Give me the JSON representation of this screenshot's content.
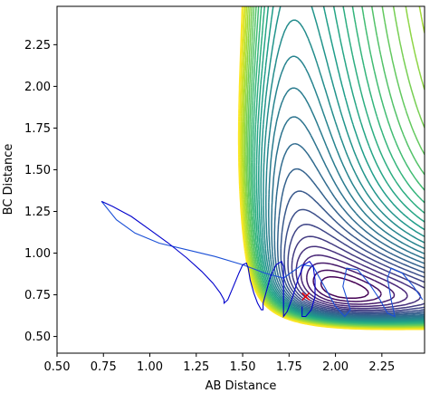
{
  "chart_data": {
    "type": "contour",
    "title": "",
    "xlabel": "AB Distance",
    "ylabel": "BC Distance",
    "xlim": [
      0.5,
      2.48
    ],
    "ylim": [
      0.4,
      2.48
    ],
    "xticks": [
      "0.50",
      "0.75",
      "1.00",
      "1.25",
      "1.50",
      "1.75",
      "2.00",
      "2.25"
    ],
    "yticks": [
      "0.50",
      "0.75",
      "1.00",
      "1.25",
      "1.50",
      "1.75",
      "2.00",
      "2.25"
    ],
    "colormap": "viridis",
    "grid": false,
    "contour_levels": 30,
    "trajectory": {
      "color": "#0000cc",
      "points": [
        [
          0.74,
          1.31
        ],
        [
          0.8,
          1.28
        ],
        [
          0.9,
          1.22
        ],
        [
          1.0,
          1.14
        ],
        [
          1.1,
          1.06
        ],
        [
          1.2,
          0.97
        ],
        [
          1.28,
          0.89
        ],
        [
          1.34,
          0.82
        ],
        [
          1.38,
          0.76
        ],
        [
          1.4,
          0.72
        ],
        [
          1.4,
          0.7
        ],
        [
          1.42,
          0.72
        ],
        [
          1.45,
          0.8
        ],
        [
          1.48,
          0.88
        ],
        [
          1.5,
          0.93
        ],
        [
          1.52,
          0.94
        ],
        [
          1.53,
          0.91
        ],
        [
          1.54,
          0.84
        ],
        [
          1.56,
          0.76
        ],
        [
          1.58,
          0.7
        ],
        [
          1.6,
          0.66
        ],
        [
          1.61,
          0.66
        ],
        [
          1.61,
          0.7
        ],
        [
          1.63,
          0.78
        ],
        [
          1.65,
          0.86
        ],
        [
          1.68,
          0.93
        ],
        [
          1.71,
          0.95
        ],
        [
          1.72,
          0.92
        ],
        [
          1.72,
          0.84
        ],
        [
          1.72,
          0.75
        ],
        [
          1.72,
          0.66
        ],
        [
          1.72,
          0.62
        ],
        [
          1.74,
          0.65
        ],
        [
          1.77,
          0.74
        ],
        [
          1.8,
          0.85
        ],
        [
          1.83,
          0.93
        ],
        [
          1.86,
          0.95
        ],
        [
          1.88,
          0.92
        ],
        [
          1.89,
          0.84
        ],
        [
          1.89,
          0.74
        ],
        [
          1.87,
          0.66
        ],
        [
          1.84,
          0.62
        ],
        [
          1.82,
          0.62
        ],
        [
          1.82,
          0.68
        ]
      ],
      "end_marker": {
        "x": 1.84,
        "y": 0.74,
        "color": "#ee0000",
        "symbol": "x"
      }
    },
    "secondary_trajectory": {
      "color": "#1a4fd6",
      "points": [
        [
          0.74,
          1.31
        ],
        [
          0.82,
          1.2
        ],
        [
          0.92,
          1.12
        ],
        [
          1.05,
          1.06
        ],
        [
          1.2,
          1.02
        ],
        [
          1.35,
          0.98
        ],
        [
          1.5,
          0.93
        ],
        [
          1.62,
          0.88
        ],
        [
          1.72,
          0.85
        ],
        [
          1.82,
          0.93
        ],
        [
          1.88,
          0.92
        ],
        [
          1.95,
          0.78
        ],
        [
          2.0,
          0.68
        ],
        [
          2.05,
          0.62
        ],
        [
          2.08,
          0.66
        ],
        [
          2.04,
          0.8
        ],
        [
          2.06,
          0.91
        ],
        [
          2.12,
          0.9
        ],
        [
          2.18,
          0.82
        ],
        [
          2.24,
          0.72
        ],
        [
          2.28,
          0.64
        ],
        [
          2.32,
          0.62
        ],
        [
          2.3,
          0.72
        ],
        [
          2.28,
          0.85
        ],
        [
          2.3,
          0.91
        ],
        [
          2.36,
          0.88
        ],
        [
          2.42,
          0.8
        ],
        [
          2.47,
          0.72
        ]
      ]
    }
  }
}
